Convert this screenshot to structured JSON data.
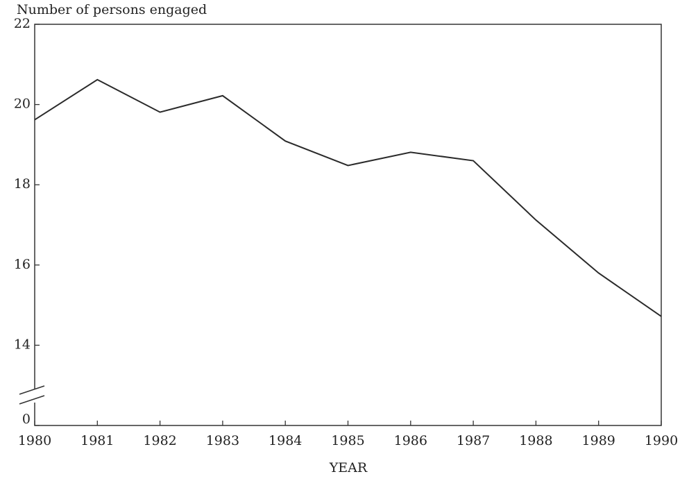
{
  "chart_data": {
    "type": "line",
    "title": "Number of persons engaged",
    "x_label": "YEAR",
    "x": [
      1980,
      1981,
      1982,
      1983,
      1984,
      1985,
      1986,
      1987,
      1988,
      1989,
      1990
    ],
    "series": [
      {
        "name": "Number of persons engaged",
        "color": "#2a2a2a",
        "values": [
          19.62,
          20.62,
          19.81,
          20.22,
          19.09,
          18.48,
          18.81,
          18.6,
          17.12,
          15.8,
          14.72
        ]
      }
    ],
    "xlim": [
      1980,
      1990
    ],
    "xticks": [
      1980,
      1981,
      1982,
      1983,
      1984,
      1985,
      1986,
      1987,
      1988,
      1989,
      1990
    ],
    "ylim": [
      12,
      22
    ],
    "yticks": [
      {
        "value": 12,
        "label": "0"
      },
      14,
      16,
      18,
      20,
      22
    ]
  }
}
